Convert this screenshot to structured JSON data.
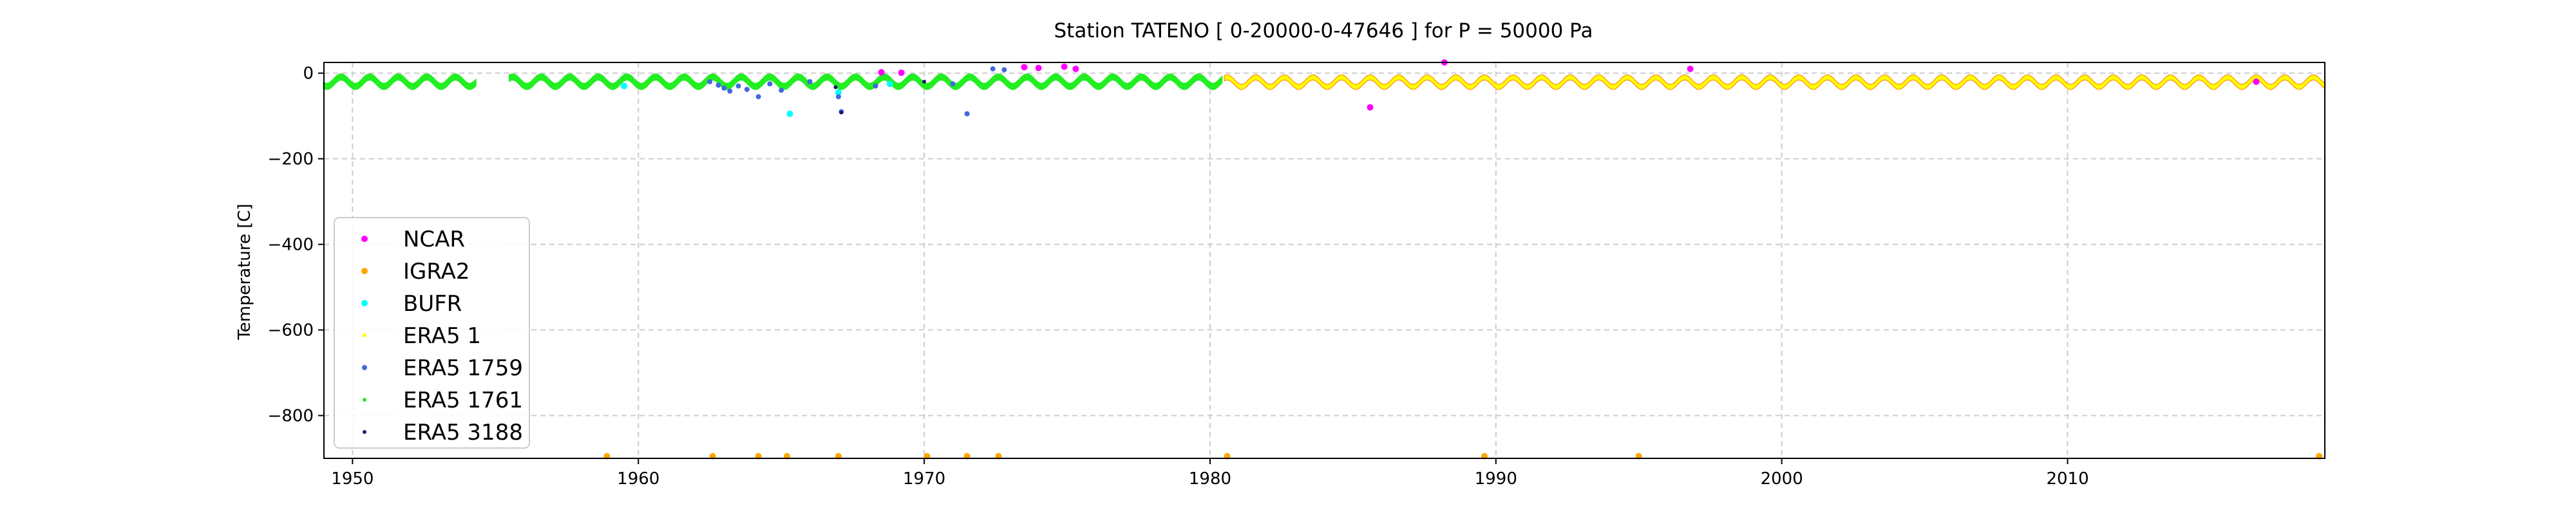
{
  "chart_data": {
    "type": "scatter",
    "title": "Station  TATENO [ 0-20000-0-47646 ]  for P = 50000 Pa",
    "xlabel": "",
    "ylabel": "Temperature [C]",
    "xlim": [
      1949.0,
      2019.0
    ],
    "ylim": [
      -900,
      25
    ],
    "x_ticks": [
      1950,
      1960,
      1970,
      1980,
      1990,
      2000,
      2010
    ],
    "y_ticks": [
      0,
      -200,
      -400,
      -600,
      -800
    ],
    "y_tick_labels": [
      "0",
      "−200",
      "−400",
      "−600",
      "−800"
    ],
    "grid": true,
    "legend_position": "lower left",
    "seasonal_series": [
      {
        "name": "ERA5 1761",
        "color": "#22ee22",
        "periods": [
          [
            1949.0,
            1954.3
          ],
          [
            1955.5,
            1980.4
          ]
        ],
        "mean": -20,
        "amplitude": 11
      },
      {
        "name": "ERA5 1",
        "color": "#ffff00",
        "edge": "#ff8c00",
        "periods": [
          [
            1980.5,
            2019.0
          ]
        ],
        "mean": -21,
        "amplitude": 11
      }
    ],
    "series": [
      {
        "name": "NCAR",
        "color": "#ff00ff",
        "marker_size": 5,
        "points": [
          [
            1973.5,
            14
          ],
          [
            1974.0,
            12
          ],
          [
            1974.9,
            15
          ],
          [
            1975.3,
            10
          ],
          [
            1985.6,
            -80
          ],
          [
            1988.2,
            25
          ],
          [
            1996.8,
            10
          ],
          [
            1968.5,
            2
          ],
          [
            1969.2,
            1
          ],
          [
            2016.6,
            -20
          ]
        ]
      },
      {
        "name": "IGRA2",
        "color": "#ffa500",
        "marker_size": 5,
        "points": [
          [
            1958.9,
            -895
          ],
          [
            1962.6,
            -895
          ],
          [
            1964.2,
            -895
          ],
          [
            1965.2,
            -895
          ],
          [
            1967.0,
            -895
          ],
          [
            1970.1,
            -895
          ],
          [
            1971.5,
            -895
          ],
          [
            1972.6,
            -895
          ],
          [
            1980.6,
            -895
          ],
          [
            1989.6,
            -895
          ],
          [
            1995.0,
            -895
          ],
          [
            2018.8,
            -895
          ]
        ]
      },
      {
        "name": "BUFR",
        "color": "#00ffff",
        "marker_size": 5,
        "points": [
          [
            1965.3,
            -95
          ],
          [
            1967.0,
            -45
          ],
          [
            1959.5,
            -30
          ],
          [
            1968.8,
            -25
          ]
        ]
      },
      {
        "name": "ERA5 1",
        "color": "#ffff00",
        "marker_size": 3,
        "points": []
      },
      {
        "name": "ERA5 1759",
        "color": "#4169e1",
        "marker_size": 4,
        "points": [
          [
            1963.0,
            -35
          ],
          [
            1963.2,
            -42
          ],
          [
            1963.5,
            -30
          ],
          [
            1963.8,
            -38
          ],
          [
            1964.2,
            -55
          ],
          [
            1964.6,
            -25
          ],
          [
            1965.0,
            -40
          ],
          [
            1966.0,
            -20
          ],
          [
            1967.0,
            -55
          ],
          [
            1967.1,
            -90
          ],
          [
            1968.3,
            -30
          ],
          [
            1971.5,
            -95
          ],
          [
            1972.4,
            10
          ],
          [
            1972.8,
            8
          ],
          [
            1971.0,
            -25
          ],
          [
            1962.8,
            -28
          ],
          [
            1962.5,
            -20
          ]
        ]
      },
      {
        "name": "ERA5 1761",
        "color": "#22ee22",
        "marker_size": 3,
        "points": []
      },
      {
        "name": "ERA5 3188",
        "color": "#191970",
        "marker_size": 3,
        "points": [
          [
            1967.1,
            -92
          ],
          [
            1966.9,
            -33
          ],
          [
            1970.0,
            -20
          ]
        ]
      }
    ],
    "legend": [
      {
        "label": "NCAR",
        "color": "#ff00ff"
      },
      {
        "label": "IGRA2",
        "color": "#ffa500"
      },
      {
        "label": "BUFR",
        "color": "#00ffff"
      },
      {
        "label": "ERA5 1",
        "color": "#ffff00"
      },
      {
        "label": "ERA5 1759",
        "color": "#4169e1"
      },
      {
        "label": "ERA5 1761",
        "color": "#22ee22"
      },
      {
        "label": "ERA5 3188",
        "color": "#191970"
      }
    ]
  }
}
